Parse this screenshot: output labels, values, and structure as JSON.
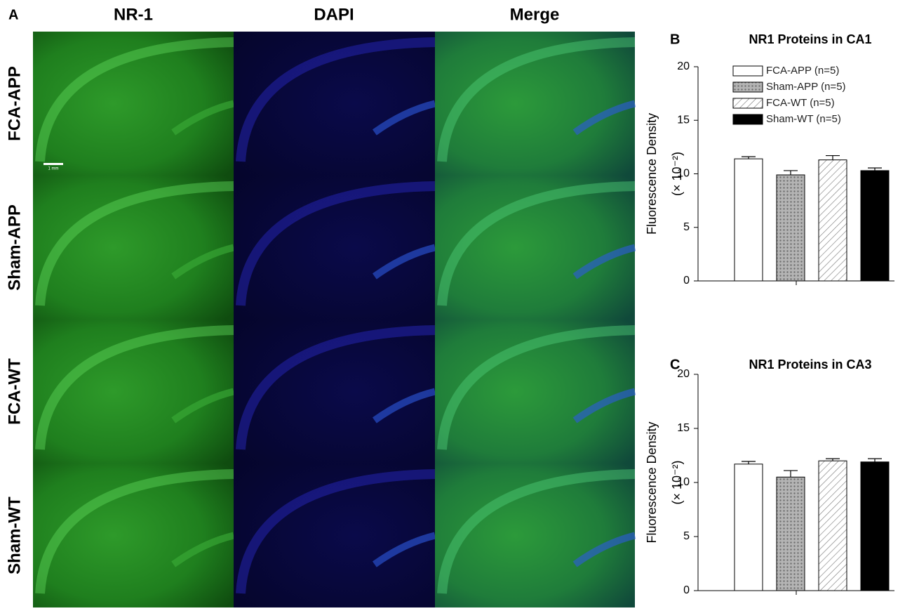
{
  "panel_a": {
    "label": "A",
    "columns": [
      "NR-1",
      "DAPI",
      "Merge"
    ],
    "rows": [
      "FCA-APP",
      "Sham-APP",
      "FCA-WT",
      "Sham-WT"
    ],
    "scale_bar": "1 mm"
  },
  "chart_data": [
    {
      "type": "bar",
      "label": "B",
      "title": "NR1 Proteins in CA1",
      "ylabel": [
        "Fluorescence Density",
        "(× 10⁻²)"
      ],
      "ylim": [
        0,
        20
      ],
      "yticks": [
        0,
        5,
        10,
        15,
        20
      ],
      "legend": true,
      "series": [
        {
          "name": "FCA-APP   (n=5)",
          "color": "#ffffff",
          "pattern": "solid",
          "values": [
            11.4
          ],
          "errors": [
            0.2
          ]
        },
        {
          "name": "Sham-APP (n=5)",
          "color": "#aaaaaa",
          "pattern": "dots",
          "values": [
            9.9
          ],
          "errors": [
            0.4
          ]
        },
        {
          "name": "FCA-WT     (n=5)",
          "color": "#ffffff",
          "pattern": "hatch",
          "values": [
            11.3
          ],
          "errors": [
            0.4
          ]
        },
        {
          "name": "Sham-WT  (n=5)",
          "color": "#000000",
          "pattern": "solid",
          "values": [
            10.3
          ],
          "errors": [
            0.25
          ]
        }
      ]
    },
    {
      "type": "bar",
      "label": "C",
      "title": "NR1 Proteins in CA3",
      "ylabel": [
        "Fluorescence Density",
        "(× 10⁻²)"
      ],
      "ylim": [
        0,
        20
      ],
      "yticks": [
        0,
        5,
        10,
        15,
        20
      ],
      "legend": false,
      "series": [
        {
          "color": "#ffffff",
          "pattern": "solid",
          "values": [
            11.7
          ],
          "errors": [
            0.25
          ]
        },
        {
          "color": "#aaaaaa",
          "pattern": "dots",
          "values": [
            10.5
          ],
          "errors": [
            0.6
          ]
        },
        {
          "color": "#ffffff",
          "pattern": "hatch",
          "values": [
            12.0
          ],
          "errors": [
            0.2
          ]
        },
        {
          "color": "#000000",
          "pattern": "solid",
          "values": [
            11.9
          ],
          "errors": [
            0.3
          ]
        }
      ]
    }
  ]
}
